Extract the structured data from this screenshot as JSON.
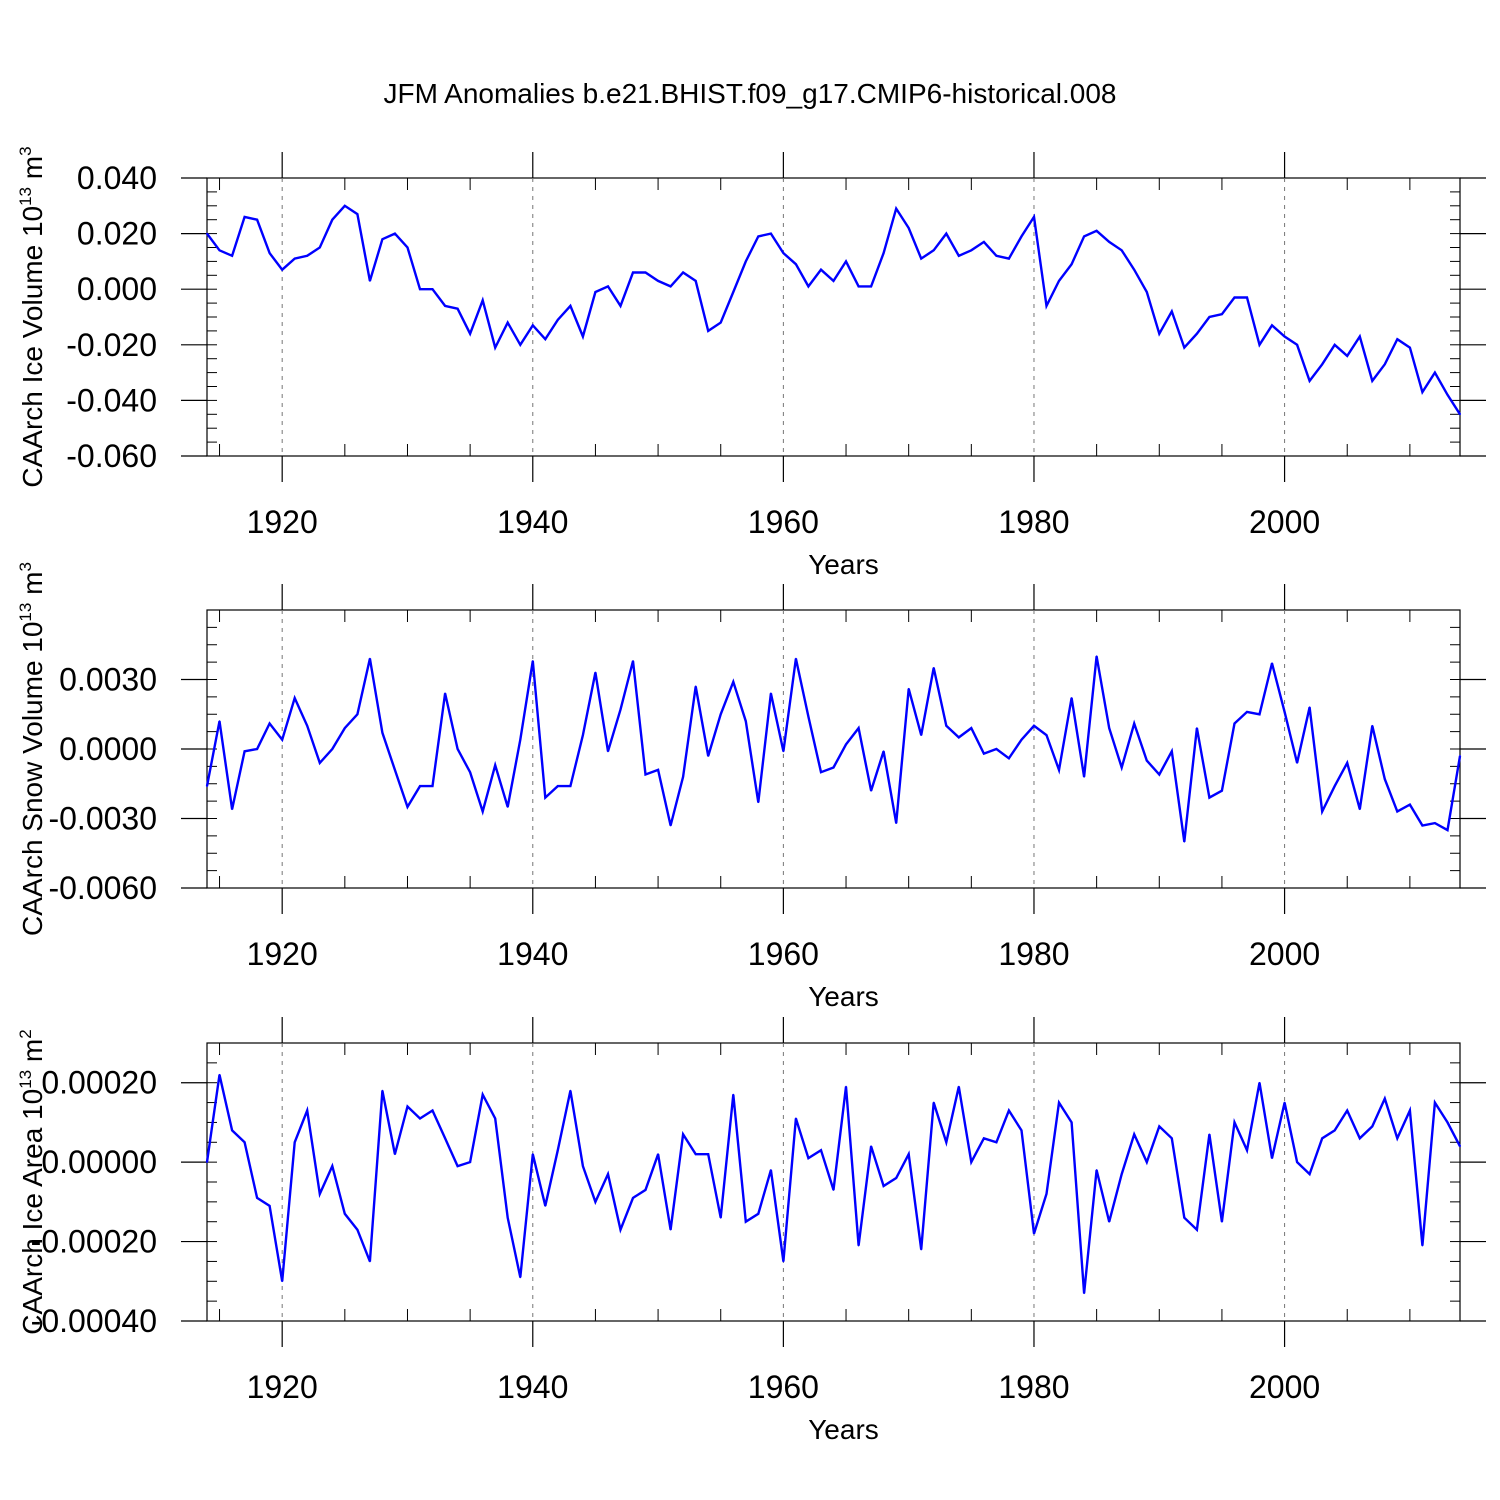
{
  "figure": {
    "title": "JFM Anomalies b.e21.BHIST.f09_g17.CMIP6-historical.008"
  },
  "chart_data": [
    {
      "type": "line",
      "title": "",
      "xlabel": "Years",
      "ylabel": "CAArch Ice Volume 10",
      "ylabel_exp": "13",
      "ylabel_unit": "m",
      "ylabel_unit_exp": "3",
      "xlim": [
        1914,
        2014
      ],
      "ylim": [
        -0.06,
        0.04
      ],
      "xticks": [
        1920,
        1940,
        1960,
        1980,
        2000
      ],
      "xtick_labels": [
        "1920",
        "1940",
        "1960",
        "1980",
        "2000"
      ],
      "yticks": [
        -0.06,
        -0.04,
        -0.02,
        0.0,
        0.02,
        0.04
      ],
      "ytick_labels": [
        "-0.060",
        "-0.040",
        "-0.020",
        "0.000",
        "0.020",
        "0.040"
      ],
      "grid": "vertical dashed at major x ticks",
      "series": [
        {
          "name": "CAArch Ice Volume",
          "color": "#0000ff",
          "x": [
            1914,
            1915,
            1916,
            1917,
            1918,
            1919,
            1920,
            1921,
            1922,
            1923,
            1924,
            1925,
            1926,
            1927,
            1928,
            1929,
            1930,
            1931,
            1932,
            1933,
            1934,
            1935,
            1936,
            1937,
            1938,
            1939,
            1940,
            1941,
            1942,
            1943,
            1944,
            1945,
            1946,
            1947,
            1948,
            1949,
            1950,
            1951,
            1952,
            1953,
            1954,
            1955,
            1956,
            1957,
            1958,
            1959,
            1960,
            1961,
            1962,
            1963,
            1964,
            1965,
            1966,
            1967,
            1968,
            1969,
            1970,
            1971,
            1972,
            1973,
            1974,
            1975,
            1976,
            1977,
            1978,
            1979,
            1980,
            1981,
            1982,
            1983,
            1984,
            1985,
            1986,
            1987,
            1988,
            1989,
            1990,
            1991,
            1992,
            1993,
            1994,
            1995,
            1996,
            1997,
            1998,
            1999,
            2000,
            2001,
            2002,
            2003,
            2004,
            2005,
            2006,
            2007,
            2008,
            2009,
            2010,
            2011,
            2012,
            2013,
            2014
          ],
          "values": [
            0.02,
            0.014,
            0.012,
            0.026,
            0.025,
            0.013,
            0.007,
            0.011,
            0.012,
            0.015,
            0.025,
            0.03,
            0.027,
            0.003,
            0.018,
            0.02,
            0.015,
            0.0,
            0.0,
            -0.006,
            -0.007,
            -0.016,
            -0.004,
            -0.021,
            -0.012,
            -0.02,
            -0.013,
            -0.018,
            -0.011,
            -0.006,
            -0.017,
            -0.001,
            0.001,
            -0.006,
            0.006,
            0.006,
            0.003,
            0.001,
            0.006,
            0.003,
            -0.015,
            -0.012,
            -0.001,
            0.01,
            0.019,
            0.02,
            0.013,
            0.009,
            0.001,
            0.007,
            0.003,
            0.01,
            0.001,
            0.001,
            0.013,
            0.029,
            0.022,
            0.011,
            0.014,
            0.02,
            0.012,
            0.014,
            0.017,
            0.012,
            0.011,
            0.019,
            0.026,
            -0.006,
            0.003,
            0.009,
            0.019,
            0.021,
            0.017,
            0.014,
            0.007,
            -0.001,
            -0.016,
            -0.008,
            -0.021,
            -0.016,
            -0.01,
            -0.009,
            -0.003,
            -0.003,
            -0.02,
            -0.013,
            -0.017,
            -0.02,
            -0.033,
            -0.027,
            -0.02,
            -0.024,
            -0.017,
            -0.033,
            -0.027,
            -0.018,
            -0.021,
            -0.037,
            -0.03,
            -0.038,
            -0.045
          ]
        }
      ]
    },
    {
      "type": "line",
      "title": "",
      "xlabel": "Years",
      "ylabel": "CAArch Snow Volume 10",
      "ylabel_exp": "13",
      "ylabel_unit": "m",
      "ylabel_unit_exp": "3",
      "xlim": [
        1914,
        2014
      ],
      "ylim": [
        -0.006,
        0.006
      ],
      "xticks": [
        1920,
        1940,
        1960,
        1980,
        2000
      ],
      "xtick_labels": [
        "1920",
        "1940",
        "1960",
        "1980",
        "2000"
      ],
      "yticks": [
        -0.006,
        -0.003,
        0.0,
        0.003
      ],
      "ytick_labels": [
        "-0.0060",
        "-0.0030",
        "0.0000",
        "0.0030"
      ],
      "grid": "vertical dashed at major x ticks",
      "series": [
        {
          "name": "CAArch Snow Volume",
          "color": "#0000ff",
          "x": [
            1914,
            1915,
            1916,
            1917,
            1918,
            1919,
            1920,
            1921,
            1922,
            1923,
            1924,
            1925,
            1926,
            1927,
            1928,
            1929,
            1930,
            1931,
            1932,
            1933,
            1934,
            1935,
            1936,
            1937,
            1938,
            1939,
            1940,
            1941,
            1942,
            1943,
            1944,
            1945,
            1946,
            1947,
            1948,
            1949,
            1950,
            1951,
            1952,
            1953,
            1954,
            1955,
            1956,
            1957,
            1958,
            1959,
            1960,
            1961,
            1962,
            1963,
            1964,
            1965,
            1966,
            1967,
            1968,
            1969,
            1970,
            1971,
            1972,
            1973,
            1974,
            1975,
            1976,
            1977,
            1978,
            1979,
            1980,
            1981,
            1982,
            1983,
            1984,
            1985,
            1986,
            1987,
            1988,
            1989,
            1990,
            1991,
            1992,
            1993,
            1994,
            1995,
            1996,
            1997,
            1998,
            1999,
            2000,
            2001,
            2002,
            2003,
            2004,
            2005,
            2006,
            2007,
            2008,
            2009,
            2010,
            2011,
            2012,
            2013,
            2014
          ],
          "values": [
            -0.0016,
            0.0012,
            -0.0026,
            -0.0001,
            0.0,
            0.0011,
            0.0004,
            0.0022,
            0.001,
            -0.0006,
            0.0,
            0.0009,
            0.0015,
            0.0039,
            0.0007,
            -0.0009,
            -0.0025,
            -0.0016,
            -0.0016,
            0.0024,
            0.0,
            -0.001,
            -0.0027,
            -0.0007,
            -0.0025,
            0.0004,
            0.0038,
            -0.0021,
            -0.0016,
            -0.0016,
            0.0006,
            0.0033,
            -0.0001,
            0.0017,
            0.0038,
            -0.0011,
            -0.0009,
            -0.0033,
            -0.0012,
            0.0027,
            -0.0003,
            0.0015,
            0.0029,
            0.0012,
            -0.0023,
            0.0024,
            -0.0001,
            0.0039,
            0.0014,
            -0.001,
            -0.0008,
            0.0002,
            0.0009,
            -0.0018,
            -0.0001,
            -0.0032,
            0.0026,
            0.0006,
            0.0035,
            0.001,
            0.0005,
            0.0009,
            -0.0002,
            0.0,
            -0.0004,
            0.0004,
            0.001,
            0.0006,
            -0.0009,
            0.0022,
            -0.0012,
            0.004,
            0.0009,
            -0.0008,
            0.0011,
            -0.0005,
            -0.0011,
            -0.0001,
            -0.004,
            0.0009,
            -0.0021,
            -0.0018,
            0.0011,
            0.0016,
            0.0015,
            0.0037,
            0.0016,
            -0.0006,
            0.0018,
            -0.0027,
            -0.0016,
            -0.0006,
            -0.0026,
            0.001,
            -0.0013,
            -0.0027,
            -0.0024,
            -0.0033,
            -0.0032,
            -0.0035,
            -0.0003
          ]
        }
      ]
    },
    {
      "type": "line",
      "title": "",
      "xlabel": "Years",
      "ylabel": "CAArch Ice Area 10",
      "ylabel_exp": "13",
      "ylabel_unit": "m",
      "ylabel_unit_exp": "2",
      "xlim": [
        1914,
        2014
      ],
      "ylim": [
        -0.0004,
        0.0003
      ],
      "xticks": [
        1920,
        1940,
        1960,
        1980,
        2000
      ],
      "xtick_labels": [
        "1920",
        "1940",
        "1960",
        "1980",
        "2000"
      ],
      "yticks": [
        -0.0004,
        -0.0002,
        0.0,
        0.0002
      ],
      "ytick_labels": [
        "-0.00040",
        "-0.00020",
        "0.00000",
        "0.00020"
      ],
      "grid": "vertical dashed at major x ticks",
      "series": [
        {
          "name": "CAArch Ice Area",
          "color": "#0000ff",
          "x": [
            1914,
            1915,
            1916,
            1917,
            1918,
            1919,
            1920,
            1921,
            1922,
            1923,
            1924,
            1925,
            1926,
            1927,
            1928,
            1929,
            1930,
            1931,
            1932,
            1933,
            1934,
            1935,
            1936,
            1937,
            1938,
            1939,
            1940,
            1941,
            1942,
            1943,
            1944,
            1945,
            1946,
            1947,
            1948,
            1949,
            1950,
            1951,
            1952,
            1953,
            1954,
            1955,
            1956,
            1957,
            1958,
            1959,
            1960,
            1961,
            1962,
            1963,
            1964,
            1965,
            1966,
            1967,
            1968,
            1969,
            1970,
            1971,
            1972,
            1973,
            1974,
            1975,
            1976,
            1977,
            1978,
            1979,
            1980,
            1981,
            1982,
            1983,
            1984,
            1985,
            1986,
            1987,
            1988,
            1989,
            1990,
            1991,
            1992,
            1993,
            1994,
            1995,
            1996,
            1997,
            1998,
            1999,
            2000,
            2001,
            2002,
            2003,
            2004,
            2005,
            2006,
            2007,
            2008,
            2009,
            2010,
            2011,
            2012,
            2013,
            2014
          ],
          "values": [
            0.0,
            0.00022,
            8e-05,
            5e-05,
            -9e-05,
            -0.00011,
            -0.0003,
            5e-05,
            0.00013,
            -8e-05,
            -1e-05,
            -0.00013,
            -0.00017,
            -0.00025,
            0.00018,
            2e-05,
            0.00014,
            0.00011,
            0.00013,
            6e-05,
            -1e-05,
            0.0,
            0.00017,
            0.00011,
            -0.00014,
            -0.00029,
            2e-05,
            -0.00011,
            3e-05,
            0.00018,
            -1e-05,
            -0.0001,
            -3e-05,
            -0.00017,
            -9e-05,
            -7e-05,
            2e-05,
            -0.00017,
            7e-05,
            2e-05,
            2e-05,
            -0.00014,
            0.00017,
            -0.00015,
            -0.00013,
            -2e-05,
            -0.00025,
            0.00011,
            1e-05,
            3e-05,
            -7e-05,
            0.00019,
            -0.00021,
            4e-05,
            -6e-05,
            -4e-05,
            2e-05,
            -0.00022,
            0.00015,
            5e-05,
            0.00019,
            0.0,
            6e-05,
            5e-05,
            0.00013,
            8e-05,
            -0.00018,
            -8e-05,
            0.00015,
            0.0001,
            -0.00033,
            -2e-05,
            -0.00015,
            -3e-05,
            7e-05,
            0.0,
            9e-05,
            6e-05,
            -0.00014,
            -0.00017,
            7e-05,
            -0.00015,
            0.0001,
            3e-05,
            0.0002,
            1e-05,
            0.00015,
            0.0,
            -3e-05,
            6e-05,
            8e-05,
            0.00013,
            6e-05,
            9e-05,
            0.00016,
            6e-05,
            0.00013,
            -0.00021,
            0.00015,
            0.0001,
            4e-05
          ]
        }
      ]
    }
  ]
}
